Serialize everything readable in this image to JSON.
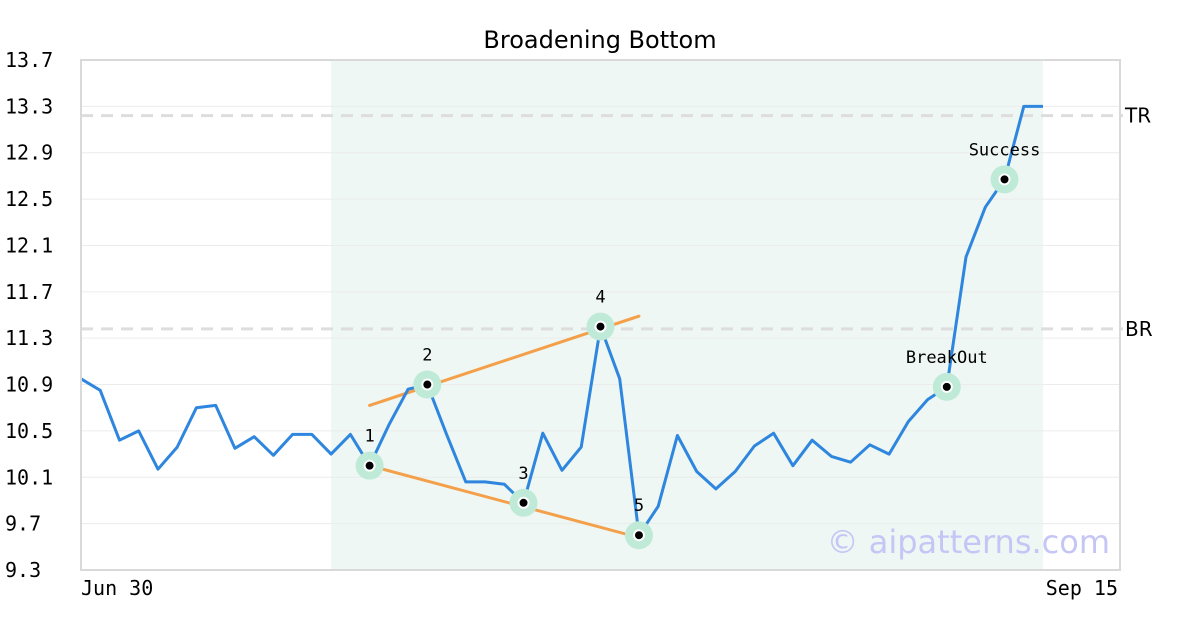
{
  "chart_data": {
    "type": "line",
    "title": "Broadening Bottom",
    "ylim": [
      9.3,
      13.7
    ],
    "y_ticks": [
      "13.7",
      "13.3",
      "12.9",
      "12.5",
      "12.1",
      "11.7",
      "11.3",
      "10.9",
      "10.5",
      "10.1",
      "9.7",
      "9.3"
    ],
    "x_labels": [
      "Jun 30",
      "Sep 15"
    ],
    "grid": "horizontal",
    "watermark": "© aipatterns.com",
    "colors": {
      "price": "#2e86de",
      "trendline": "#f4a04a",
      "marker_halo": "#bfead8",
      "pattern_region": "#eef7f3",
      "level_line": "#dddddd"
    },
    "series": [
      {
        "values": [
          10.95,
          10.85,
          10.42,
          10.5,
          10.17,
          10.36,
          10.7,
          10.72,
          10.35,
          10.45,
          10.29,
          10.47,
          10.47,
          10.3,
          10.47,
          10.2,
          10.55,
          10.86,
          10.9,
          10.47,
          10.06,
          10.06,
          10.04,
          9.88,
          10.48,
          10.16,
          10.36,
          11.4,
          10.95,
          9.6,
          9.85,
          10.46,
          10.15,
          10.0,
          10.15,
          10.37,
          10.48,
          10.2,
          10.42,
          10.28,
          10.23,
          10.38,
          10.3,
          10.58,
          10.77,
          10.88,
          12.0,
          12.43,
          12.67,
          13.3,
          13.3
        ]
      }
    ],
    "levels": [
      {
        "label": "TR",
        "value": 13.22
      },
      {
        "label": "BR",
        "value": 11.38
      }
    ],
    "pattern_region_index": [
      13,
      50
    ],
    "trendlines": [
      {
        "from": [
          15,
          10.2
        ],
        "to": [
          29,
          9.58
        ]
      },
      {
        "from": [
          15,
          10.72
        ],
        "to": [
          29,
          11.49
        ]
      }
    ],
    "annotations": [
      {
        "label": "1",
        "index": 15,
        "value": 10.2,
        "pos": "above"
      },
      {
        "label": "2",
        "index": 18,
        "value": 10.9,
        "pos": "above"
      },
      {
        "label": "3",
        "index": 23,
        "value": 9.88,
        "pos": "above"
      },
      {
        "label": "4",
        "index": 27,
        "value": 11.4,
        "pos": "above"
      },
      {
        "label": "5",
        "index": 29,
        "value": 9.6,
        "pos": "above"
      },
      {
        "label": "BreakOut",
        "index": 45,
        "value": 10.88,
        "pos": "above"
      },
      {
        "label": "Success",
        "index": 48,
        "value": 12.67,
        "pos": "above"
      }
    ]
  }
}
